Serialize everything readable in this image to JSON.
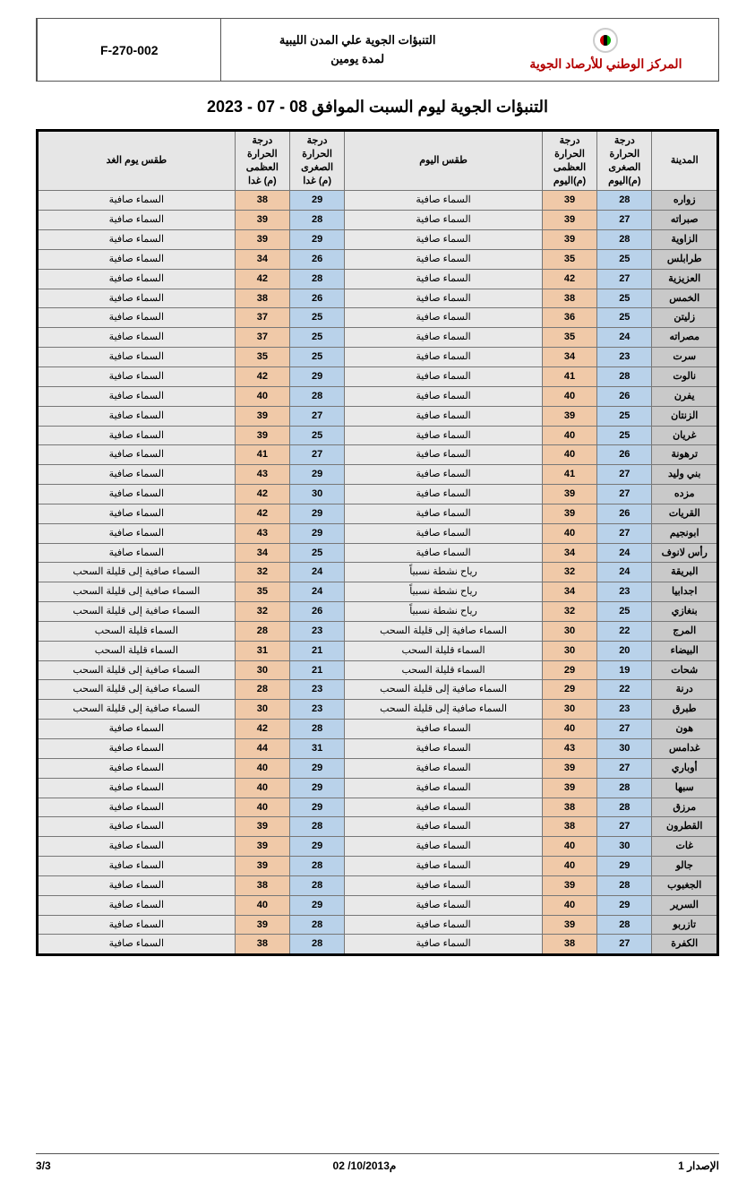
{
  "header": {
    "org_name": "المركز الوطني للأرصاد الجوية",
    "doc_title_line1": "التنبؤات الجوية علي المدن الليبية",
    "doc_title_line2": "لمدة يومين",
    "code": "F-270-002"
  },
  "page_title": "التنبؤات الجوية ليوم السبت الموافق 08 - 07 - 2023",
  "columns": {
    "city": "المدينة",
    "min_today": "درجة الحرارة الصغرى (م)اليوم",
    "max_today": "درجة الحرارة العظمى (م)اليوم",
    "wx_today": "طقس اليوم",
    "min_tom": "درجة الحرارة الصغرى (م) غدا",
    "max_tom": "درجة الحرارة العظمى (م) غدا",
    "wx_tom": "طقس يوم الغد"
  },
  "rows": [
    {
      "city": "زواره",
      "min": 28,
      "max": 39,
      "wx": "السماء صافية",
      "min2": 29,
      "max2": 38,
      "wx2": "السماء صافية"
    },
    {
      "city": "صبراته",
      "min": 27,
      "max": 39,
      "wx": "السماء صافية",
      "min2": 28,
      "max2": 39,
      "wx2": "السماء صافية"
    },
    {
      "city": "الزاوية",
      "min": 28,
      "max": 39,
      "wx": "السماء صافية",
      "min2": 29,
      "max2": 39,
      "wx2": "السماء صافية"
    },
    {
      "city": "طرابلس",
      "min": 25,
      "max": 35,
      "wx": "السماء صافية",
      "min2": 26,
      "max2": 34,
      "wx2": "السماء صافية"
    },
    {
      "city": "العزيزية",
      "min": 27,
      "max": 42,
      "wx": "السماء صافية",
      "min2": 28,
      "max2": 42,
      "wx2": "السماء صافية"
    },
    {
      "city": "الخمس",
      "min": 25,
      "max": 38,
      "wx": "السماء صافية",
      "min2": 26,
      "max2": 38,
      "wx2": "السماء صافية"
    },
    {
      "city": "زليتن",
      "min": 25,
      "max": 36,
      "wx": "السماء صافية",
      "min2": 25,
      "max2": 37,
      "wx2": "السماء صافية"
    },
    {
      "city": "مصراته",
      "min": 24,
      "max": 35,
      "wx": "السماء صافية",
      "min2": 25,
      "max2": 37,
      "wx2": "السماء صافية"
    },
    {
      "city": "سرت",
      "min": 23,
      "max": 34,
      "wx": "السماء صافية",
      "min2": 25,
      "max2": 35,
      "wx2": "السماء صافية"
    },
    {
      "city": "نالوت",
      "min": 28,
      "max": 41,
      "wx": "السماء صافية",
      "min2": 29,
      "max2": 42,
      "wx2": "السماء صافية"
    },
    {
      "city": "يفرن",
      "min": 26,
      "max": 40,
      "wx": "السماء صافية",
      "min2": 28,
      "max2": 40,
      "wx2": "السماء صافية"
    },
    {
      "city": "الزنتان",
      "min": 25,
      "max": 39,
      "wx": "السماء صافية",
      "min2": 27,
      "max2": 39,
      "wx2": "السماء صافية"
    },
    {
      "city": "غريان",
      "min": 25,
      "max": 40,
      "wx": "السماء صافية",
      "min2": 25,
      "max2": 39,
      "wx2": "السماء صافية"
    },
    {
      "city": "ترهونة",
      "min": 26,
      "max": 40,
      "wx": "السماء صافية",
      "min2": 27,
      "max2": 41,
      "wx2": "السماء صافية"
    },
    {
      "city": "بني وليد",
      "min": 27,
      "max": 41,
      "wx": "السماء صافية",
      "min2": 29,
      "max2": 43,
      "wx2": "السماء صافية"
    },
    {
      "city": "مزده",
      "min": 27,
      "max": 39,
      "wx": "السماء صافية",
      "min2": 30,
      "max2": 42,
      "wx2": "السماء صافية"
    },
    {
      "city": "القريات",
      "min": 26,
      "max": 39,
      "wx": "السماء صافية",
      "min2": 29,
      "max2": 42,
      "wx2": "السماء صافية"
    },
    {
      "city": "ابونجيم",
      "min": 27,
      "max": 40,
      "wx": "السماء صافية",
      "min2": 29,
      "max2": 43,
      "wx2": "السماء صافية"
    },
    {
      "city": "رأس لانوف",
      "min": 24,
      "max": 34,
      "wx": "السماء صافية",
      "min2": 25,
      "max2": 34,
      "wx2": "السماء صافية"
    },
    {
      "city": "البريقة",
      "min": 24,
      "max": 32,
      "wx": "رياح نشطة نسبياً",
      "min2": 24,
      "max2": 32,
      "wx2": "السماء صافية إلى قليلة السحب"
    },
    {
      "city": "اجدابيا",
      "min": 23,
      "max": 34,
      "wx": "رياح نشطة نسبياً",
      "min2": 24,
      "max2": 35,
      "wx2": "السماء صافية إلى قليلة السحب"
    },
    {
      "city": "بنغازي",
      "min": 25,
      "max": 32,
      "wx": "رياح نشطة نسبياً",
      "min2": 26,
      "max2": 32,
      "wx2": "السماء صافية إلى قليلة السحب"
    },
    {
      "city": "المرج",
      "min": 22,
      "max": 30,
      "wx": "السماء صافية إلى قليلة السحب",
      "min2": 23,
      "max2": 28,
      "wx2": "السماء قليلة السحب"
    },
    {
      "city": "البيضاء",
      "min": 20,
      "max": 30,
      "wx": "السماء قليلة السحب",
      "min2": 21,
      "max2": 31,
      "wx2": "السماء قليلة السحب"
    },
    {
      "city": "شحات",
      "min": 19,
      "max": 29,
      "wx": "السماء قليلة السحب",
      "min2": 21,
      "max2": 30,
      "wx2": "السماء صافية إلى قليلة السحب"
    },
    {
      "city": "درنة",
      "min": 22,
      "max": 29,
      "wx": "السماء صافية إلى قليلة السحب",
      "min2": 23,
      "max2": 28,
      "wx2": "السماء صافية إلى قليلة السحب"
    },
    {
      "city": "طبرق",
      "min": 23,
      "max": 30,
      "wx": "السماء صافية إلى قليلة السحب",
      "min2": 23,
      "max2": 30,
      "wx2": "السماء صافية إلى قليلة السحب"
    },
    {
      "city": "هون",
      "min": 27,
      "max": 40,
      "wx": "السماء صافية",
      "min2": 28,
      "max2": 42,
      "wx2": "السماء صافية"
    },
    {
      "city": "غدامس",
      "min": 30,
      "max": 43,
      "wx": "السماء صافية",
      "min2": 31,
      "max2": 44,
      "wx2": "السماء صافية"
    },
    {
      "city": "أوباري",
      "min": 27,
      "max": 39,
      "wx": "السماء صافية",
      "min2": 29,
      "max2": 40,
      "wx2": "السماء صافية"
    },
    {
      "city": "سبها",
      "min": 28,
      "max": 39,
      "wx": "السماء صافية",
      "min2": 29,
      "max2": 40,
      "wx2": "السماء صافية"
    },
    {
      "city": "مرزق",
      "min": 28,
      "max": 38,
      "wx": "السماء صافية",
      "min2": 29,
      "max2": 40,
      "wx2": "السماء صافية"
    },
    {
      "city": "القطرون",
      "min": 27,
      "max": 38,
      "wx": "السماء صافية",
      "min2": 28,
      "max2": 39,
      "wx2": "السماء صافية"
    },
    {
      "city": "غات",
      "min": 30,
      "max": 40,
      "wx": "السماء صافية",
      "min2": 29,
      "max2": 39,
      "wx2": "السماء صافية"
    },
    {
      "city": "جالو",
      "min": 29,
      "max": 40,
      "wx": "السماء صافية",
      "min2": 28,
      "max2": 39,
      "wx2": "السماء صافية"
    },
    {
      "city": "الجغبوب",
      "min": 28,
      "max": 39,
      "wx": "السماء صافية",
      "min2": 28,
      "max2": 38,
      "wx2": "السماء صافية"
    },
    {
      "city": "السرير",
      "min": 29,
      "max": 40,
      "wx": "السماء صافية",
      "min2": 29,
      "max2": 40,
      "wx2": "السماء صافية"
    },
    {
      "city": "تازربو",
      "min": 28,
      "max": 39,
      "wx": "السماء صافية",
      "min2": 28,
      "max2": 39,
      "wx2": "السماء صافية"
    },
    {
      "city": "الكفرة",
      "min": 27,
      "max": 38,
      "wx": "السماء صافية",
      "min2": 28,
      "max2": 38,
      "wx2": "السماء صافية"
    }
  ],
  "footer": {
    "issue": "الإصدار 1",
    "date": "02 /10/2013م",
    "page": "3/3"
  }
}
